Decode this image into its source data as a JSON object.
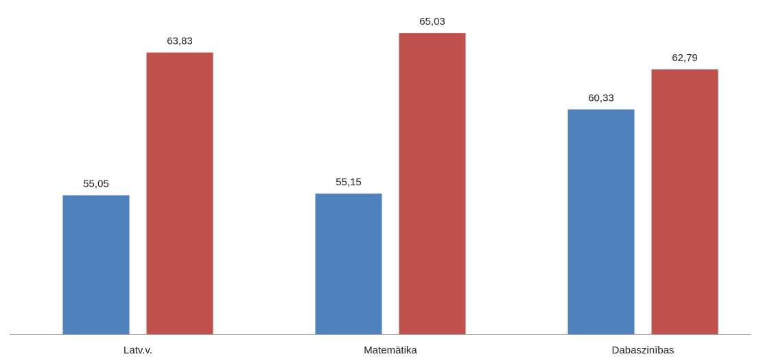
{
  "chart_data": {
    "type": "bar",
    "categories": [
      "Latv.v.",
      "Matemātika",
      "Dabaszinības"
    ],
    "series": [
      {
        "values": [
          55.05,
          55.15,
          60.33
        ],
        "labels": [
          "55,05",
          "55,15",
          "60,33"
        ],
        "color": "#4F81BD"
      },
      {
        "values": [
          63.83,
          65.03,
          62.79
        ],
        "labels": [
          "63,83",
          "65,03",
          "62,79"
        ],
        "color": "#C0504D"
      }
    ],
    "title": "",
    "xlabel": "",
    "ylabel": "",
    "ylim": [
      46.5,
      65.5
    ],
    "grid": false,
    "legend": "none",
    "axis_color": "#A6A6A6"
  }
}
